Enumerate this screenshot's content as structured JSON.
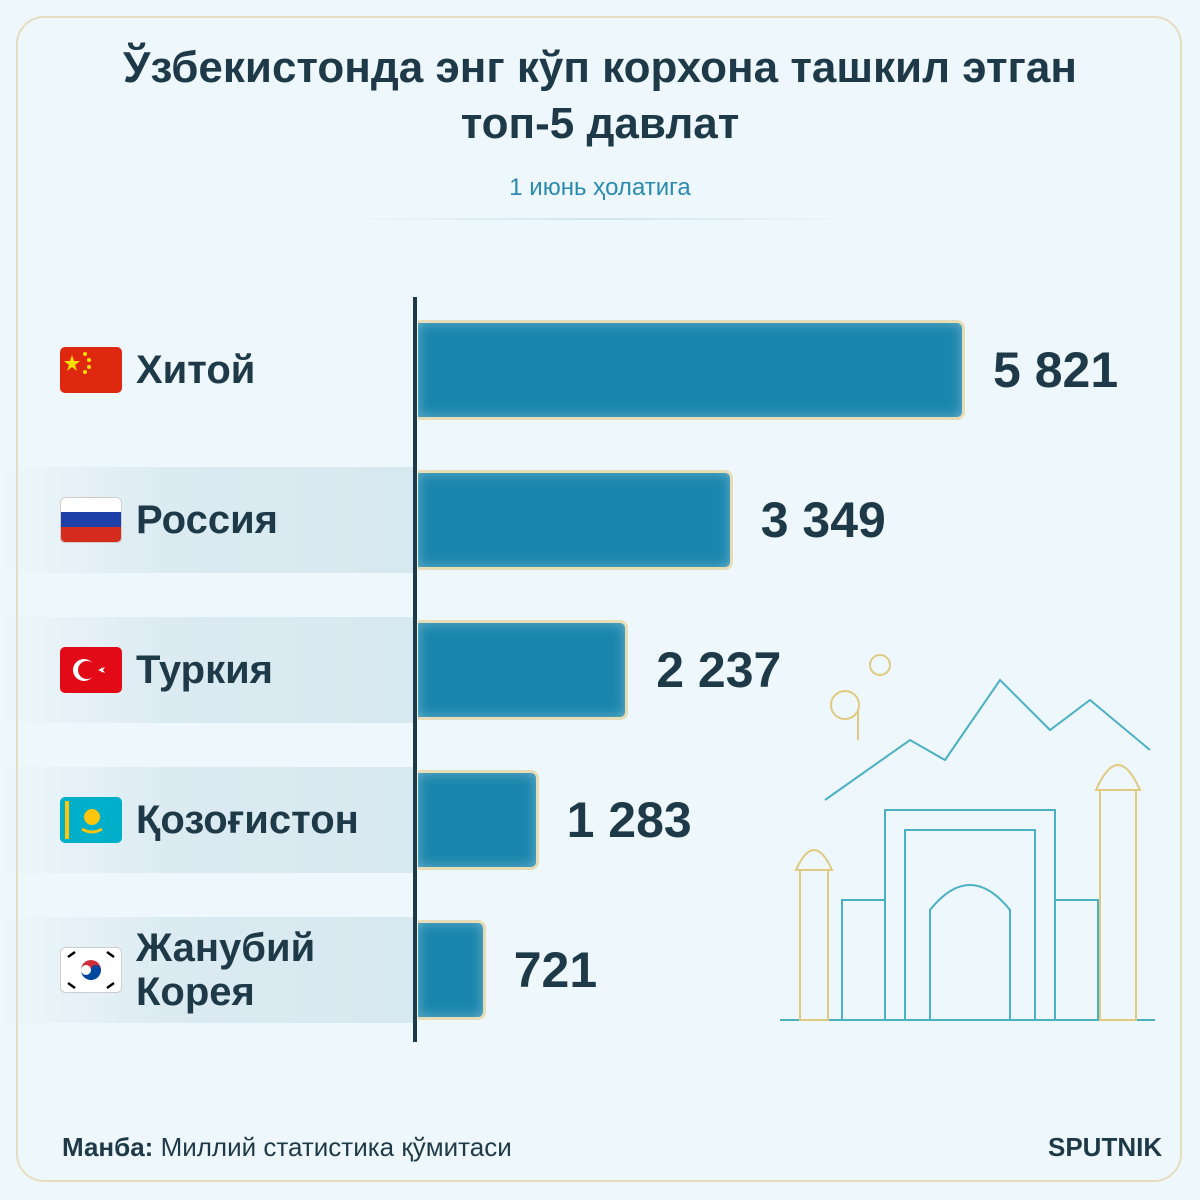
{
  "chart_data": {
    "type": "bar",
    "orientation": "horizontal",
    "title": "Ўзбекистонда энг кўп корхона ташкил этган топ-5 давлат",
    "subtitle": "1 июнь ҳолатига",
    "categories": [
      "Хитой",
      "Россия",
      "Туркия",
      "Қозоғистон",
      "Жанубий Корея"
    ],
    "values": [
      5821,
      3349,
      2237,
      1283,
      721
    ],
    "value_labels": [
      "5 821",
      "3 349",
      "2 237",
      "1 283",
      "721"
    ],
    "color": "#1b86ad",
    "source_label": "Манба:",
    "source": "Миллий статистика қўмитаси",
    "brand": "SPUTNIK"
  }
}
